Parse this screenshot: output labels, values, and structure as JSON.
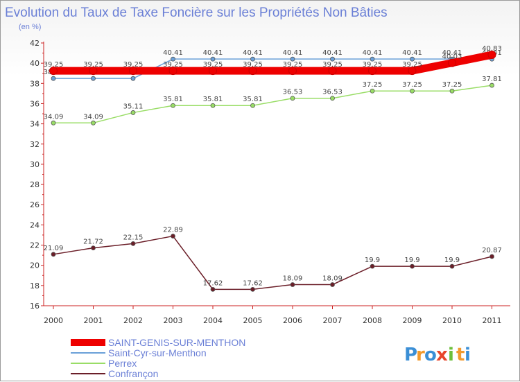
{
  "chart_data": {
    "type": "line",
    "title": "Evolution du Taux de Taxe Foncière sur les Propriétés Non Bâties",
    "subtitle": "(en %)",
    "x": [
      "2000",
      "2001",
      "2002",
      "2003",
      "2004",
      "2005",
      "2006",
      "2007",
      "2008",
      "2009",
      "2010",
      "2011"
    ],
    "ylim": [
      16,
      42
    ],
    "yticks": [
      16,
      18,
      20,
      22,
      24,
      26,
      28,
      30,
      32,
      34,
      36,
      38,
      40,
      42
    ],
    "grid": false,
    "legend_position": "bottom-left",
    "series": [
      {
        "name": "SAINT-GENIS-SUR-MENTHON",
        "color": "#ee0000",
        "values": [
          39.25,
          39.25,
          39.25,
          39.25,
          39.25,
          39.25,
          39.25,
          39.25,
          39.25,
          39.25,
          40.03,
          40.83
        ],
        "labels": [
          "39.25",
          "39.25",
          "39.25",
          "39.25",
          "39.25",
          "39.25",
          "39.25",
          "39.25",
          "39.25",
          "39.25",
          "40.03",
          "40.83"
        ]
      },
      {
        "name": "Saint-Cyr-sur-Menthon",
        "color": "#6aa0d8",
        "values": [
          38.49,
          38.49,
          38.49,
          40.41,
          40.41,
          40.41,
          40.41,
          40.41,
          40.41,
          40.41,
          40.41,
          40.41
        ],
        "labels": [
          "38.49",
          "38.49",
          "38.49",
          "40.41",
          "40.41",
          "40.41",
          "40.41",
          "40.41",
          "40.41",
          "40.41",
          "40.41",
          "40.41"
        ]
      },
      {
        "name": "Perrex",
        "color": "#99dd66",
        "values": [
          34.09,
          34.09,
          35.11,
          35.81,
          35.81,
          35.81,
          36.53,
          36.53,
          37.25,
          37.25,
          37.25,
          37.81
        ],
        "labels": [
          "34.09",
          "34.09",
          "35.11",
          "35.81",
          "35.81",
          "35.81",
          "36.53",
          "36.53",
          "37.25",
          "37.25",
          "37.25",
          "37.81"
        ]
      },
      {
        "name": "Confrançon",
        "color": "#6b1e28",
        "values": [
          21.09,
          21.72,
          22.15,
          22.89,
          17.62,
          17.62,
          18.09,
          18.09,
          19.9,
          19.9,
          19.9,
          20.87
        ],
        "labels": [
          "21.09",
          "21.72",
          "22.15",
          "22.89",
          "17.62",
          "17.62",
          "18.09",
          "18.09",
          "19.9",
          "19.9",
          "19.9",
          "20.87"
        ]
      }
    ]
  },
  "brand": {
    "letters": [
      "P",
      "r",
      "o",
      "x",
      "i",
      "t",
      "i"
    ],
    "colors": [
      "#3b8fd6",
      "#f29a2e",
      "#3b8fd6",
      "#e8452c",
      "#6cbf3a",
      "#f29a2e",
      "#3b8fd6"
    ]
  }
}
